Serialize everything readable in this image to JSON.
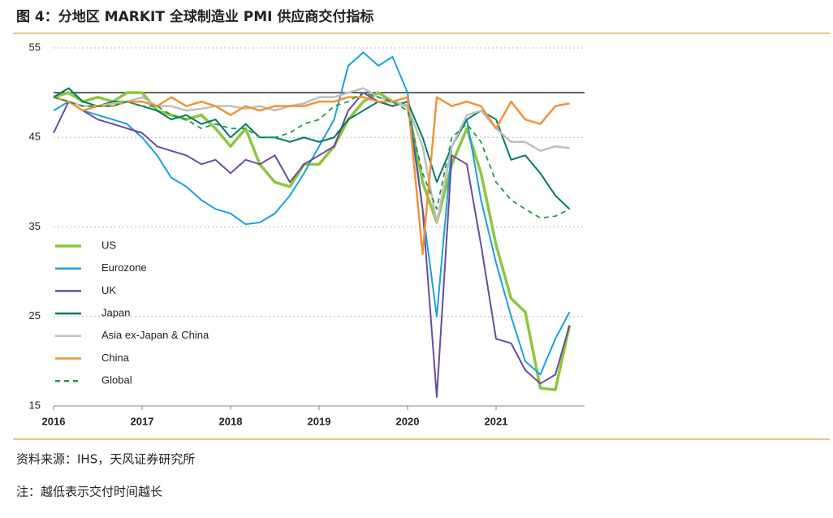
{
  "chart_data": {
    "type": "line",
    "title": "图 4：分地区 MARKIT 全球制造业 PMI 供应商交付指标",
    "source": "资料来源：IHS，天风证券研究所",
    "note": "注：越低表示交付时间越长",
    "x": [
      2016.0,
      2016.17,
      2016.33,
      2016.5,
      2016.67,
      2016.83,
      2017.0,
      2017.17,
      2017.33,
      2017.5,
      2017.67,
      2017.83,
      2018.0,
      2018.17,
      2018.33,
      2018.5,
      2018.67,
      2018.83,
      2019.0,
      2019.17,
      2019.33,
      2019.5,
      2019.67,
      2019.83,
      2020.0,
      2020.17,
      2020.33,
      2020.5,
      2020.67,
      2020.83,
      2021.0,
      2021.17,
      2021.33,
      2021.5,
      2021.67,
      2021.83
    ],
    "xlim": [
      2016,
      2022
    ],
    "xticks": [
      2016,
      2017,
      2018,
      2019,
      2020,
      2021
    ],
    "ylim": [
      15,
      55
    ],
    "yticks": [
      15,
      25,
      35,
      45,
      55
    ],
    "reference_line": 50,
    "grid": true,
    "legend": "left",
    "series": [
      {
        "name": "US",
        "color": "#8dc63f",
        "width": 3.5,
        "values": [
          49.5,
          50,
          49,
          49.5,
          49,
          50,
          50,
          48,
          47.5,
          47,
          47.5,
          46,
          44,
          46,
          42,
          40,
          39.5,
          42,
          42,
          44,
          47,
          49,
          50,
          49,
          48.5,
          40,
          35.5,
          42,
          46,
          41,
          33,
          27,
          25.5,
          17,
          16.8,
          24
        ]
      },
      {
        "name": "Eurozone",
        "color": "#1ba1d9",
        "width": 2,
        "values": [
          48,
          49,
          48,
          47.5,
          47,
          46.5,
          45,
          43,
          40.5,
          39.5,
          38,
          37,
          36.5,
          35.3,
          35.5,
          36.5,
          38.5,
          41,
          44,
          47,
          53,
          54.5,
          53,
          54,
          50,
          37,
          25,
          44,
          47,
          38,
          31,
          25,
          20,
          18.5,
          22.5,
          25.5
        ]
      },
      {
        "name": "UK",
        "color": "#6a4c9c",
        "width": 2,
        "values": [
          45.5,
          49,
          48,
          47,
          46.5,
          46,
          45.5,
          44,
          43.5,
          43,
          42,
          42.5,
          41,
          42.5,
          42,
          43,
          40,
          42,
          43,
          44,
          48,
          50,
          49,
          48.5,
          49,
          37,
          16,
          43,
          42,
          33,
          22.5,
          22,
          19,
          17.5,
          18.5,
          24
        ]
      },
      {
        "name": "Japan",
        "color": "#00786a",
        "width": 2,
        "values": [
          49.5,
          50.5,
          49,
          48.5,
          49,
          49,
          48.5,
          48,
          47,
          47.5,
          46.5,
          47,
          45,
          46.5,
          45,
          45,
          44.5,
          45,
          44.5,
          45,
          47,
          48,
          49,
          48.5,
          49,
          45,
          40,
          44,
          47,
          48,
          47,
          42.5,
          43,
          41,
          38.5,
          37
        ]
      },
      {
        "name": "Asia ex-Japan & China",
        "color": "#bfbfbf",
        "width": 2.5,
        "values": [
          49.5,
          49,
          48.5,
          48.5,
          48.8,
          49,
          49.5,
          48.5,
          48.5,
          48,
          48.2,
          48.5,
          48.5,
          48.2,
          48.5,
          48,
          48.5,
          48.8,
          49.5,
          49.5,
          50,
          50.5,
          49.5,
          49,
          48.5,
          44,
          35.5,
          44,
          47.5,
          48,
          46,
          44.5,
          44.5,
          43.5,
          44,
          43.8
        ]
      },
      {
        "name": "China",
        "color": "#f0933a",
        "width": 2.5,
        "values": [
          49.5,
          49,
          48,
          48.5,
          48.5,
          49,
          49,
          48.5,
          49.5,
          48.5,
          49,
          48.5,
          47.5,
          48.5,
          48,
          48.5,
          48.5,
          48.5,
          49,
          49,
          49.5,
          49.5,
          49,
          49,
          49.5,
          32,
          49.5,
          48.5,
          49,
          48.5,
          46,
          49,
          47,
          46.5,
          48.5,
          48.8
        ]
      },
      {
        "name": "Global",
        "color": "#1f9a4a",
        "width": 1.8,
        "dashed": true,
        "values": [
          49.5,
          49,
          48.5,
          48.5,
          48.5,
          49,
          48.5,
          48.5,
          47.5,
          47,
          46,
          46.5,
          46,
          46,
          45,
          45,
          45.5,
          46.5,
          47,
          48.5,
          49,
          50,
          49.5,
          49,
          48,
          41,
          37,
          45,
          46.5,
          44.5,
          40,
          38,
          37,
          36,
          36.2,
          37
        ]
      }
    ]
  }
}
